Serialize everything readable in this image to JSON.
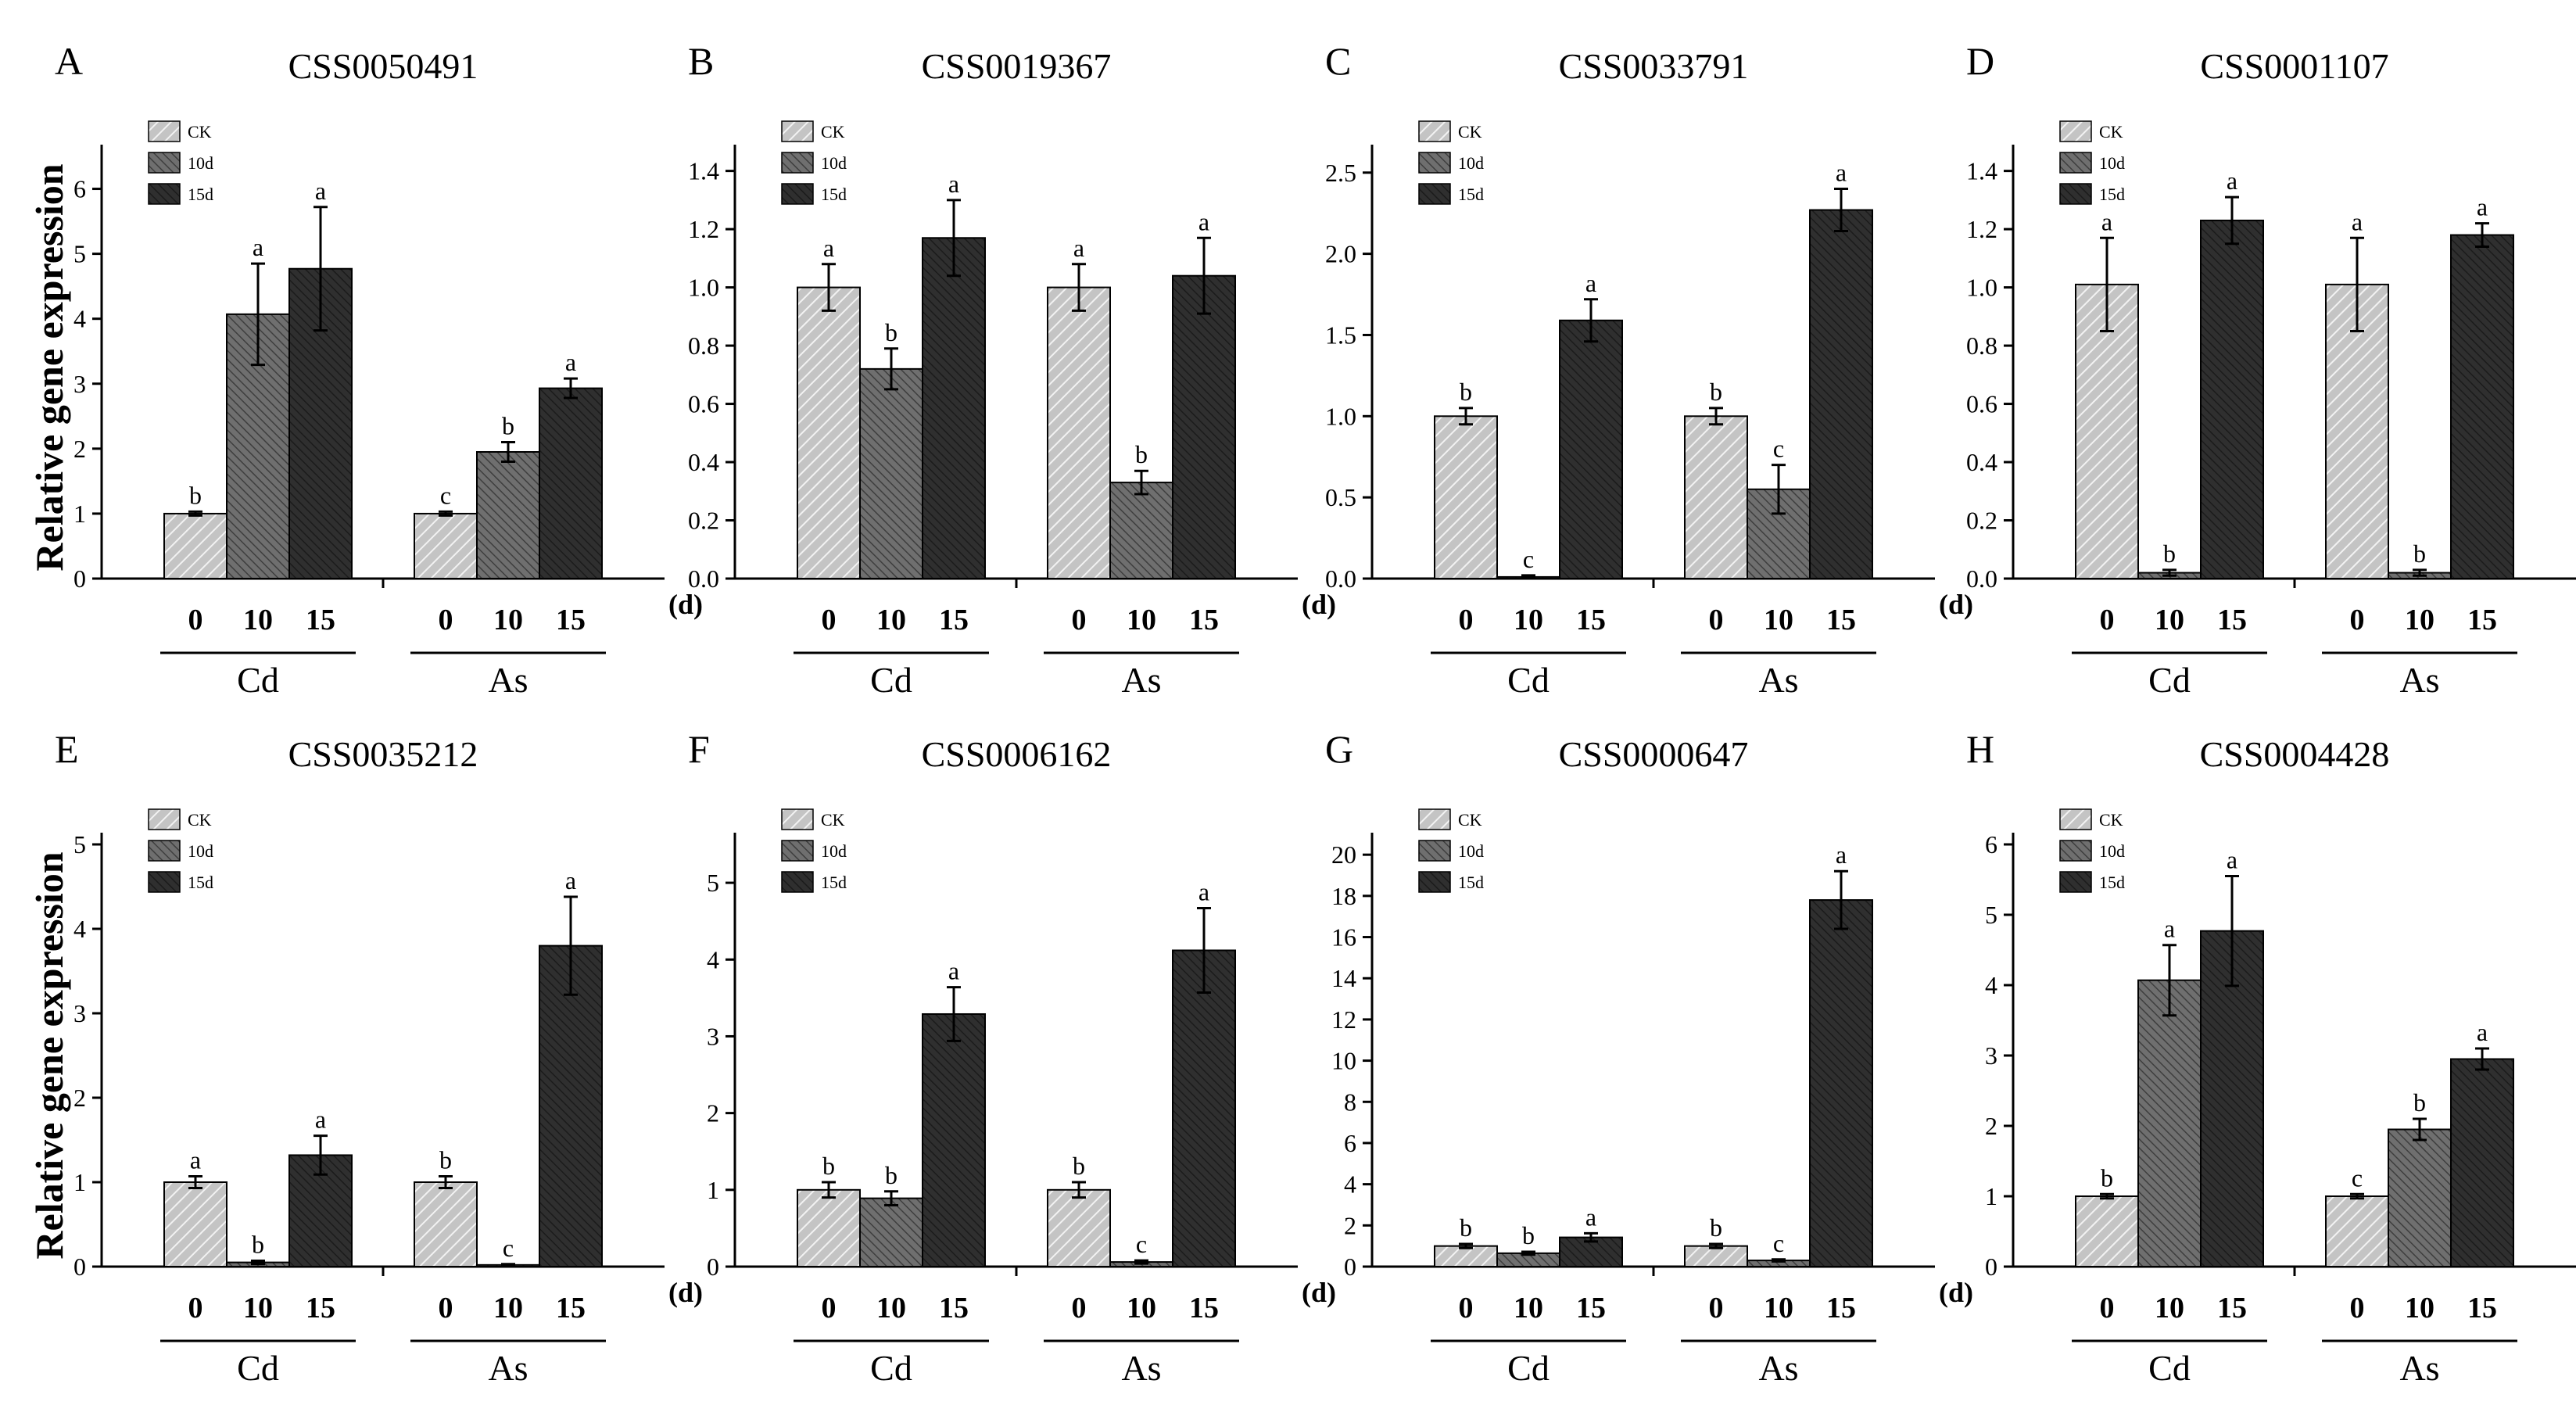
{
  "figure": {
    "ylabel": "Relative gene expression",
    "x_unit": "(d)",
    "group_labels": [
      "Cd",
      "As"
    ],
    "tick_labels": [
      "0",
      "10",
      "15"
    ],
    "legend": [
      "CK",
      "10d",
      "15d"
    ],
    "colors": {
      "CK": "#c4c4c4",
      "10d": "#6f6f6f",
      "15d": "#2f2f2f",
      "error": "#000000"
    }
  },
  "chart_data": [
    {
      "type": "bar",
      "panel": "A",
      "title": "CSS0050491",
      "ylim": [
        0,
        6.5
      ],
      "yticks": [
        0,
        1,
        2,
        3,
        4,
        5,
        6
      ],
      "decimals": 0,
      "categories": [
        "Cd",
        "As"
      ],
      "series": [
        {
          "name": "CK",
          "values": [
            1.0,
            1.0
          ],
          "errors": [
            0.03,
            0.03
          ],
          "letters": [
            "b",
            "c"
          ]
        },
        {
          "name": "10d",
          "values": [
            4.07,
            1.95
          ],
          "errors": [
            0.78,
            0.15
          ],
          "letters": [
            "a",
            "b"
          ]
        },
        {
          "name": "15d",
          "values": [
            4.77,
            2.93
          ],
          "errors": [
            0.95,
            0.15
          ],
          "letters": [
            "a",
            "a"
          ]
        }
      ]
    },
    {
      "type": "bar",
      "panel": "B",
      "title": "CSS0019367",
      "ylim": [
        0,
        1.45
      ],
      "yticks": [
        0,
        0.2,
        0.4,
        0.6,
        0.8,
        1.0,
        1.2,
        1.4
      ],
      "decimals": 1,
      "categories": [
        "Cd",
        "As"
      ],
      "series": [
        {
          "name": "CK",
          "values": [
            1.0,
            1.0
          ],
          "errors": [
            0.08,
            0.08
          ],
          "letters": [
            "a",
            "a"
          ]
        },
        {
          "name": "10d",
          "values": [
            0.72,
            0.33
          ],
          "errors": [
            0.07,
            0.04
          ],
          "letters": [
            "b",
            "b"
          ]
        },
        {
          "name": "15d",
          "values": [
            1.17,
            1.04
          ],
          "errors": [
            0.13,
            0.13
          ],
          "letters": [
            "a",
            "a"
          ]
        }
      ]
    },
    {
      "type": "bar",
      "panel": "C",
      "title": "CSS0033791",
      "ylim": [
        0,
        2.6
      ],
      "yticks": [
        0,
        0.5,
        1.0,
        1.5,
        2.0,
        2.5
      ],
      "decimals": 1,
      "categories": [
        "Cd",
        "As"
      ],
      "series": [
        {
          "name": "CK",
          "values": [
            1.0,
            1.0
          ],
          "errors": [
            0.05,
            0.05
          ],
          "letters": [
            "b",
            "b"
          ]
        },
        {
          "name": "10d",
          "values": [
            0.01,
            0.55
          ],
          "errors": [
            0.01,
            0.15
          ],
          "letters": [
            "c",
            "c"
          ]
        },
        {
          "name": "15d",
          "values": [
            1.59,
            2.27
          ],
          "errors": [
            0.13,
            0.13
          ],
          "letters": [
            "a",
            "a"
          ]
        }
      ]
    },
    {
      "type": "bar",
      "panel": "D",
      "title": "CSS0001107",
      "ylim": [
        0,
        1.45
      ],
      "yticks": [
        0,
        0.2,
        0.4,
        0.6,
        0.8,
        1.0,
        1.2,
        1.4
      ],
      "decimals": 1,
      "categories": [
        "Cd",
        "As"
      ],
      "series": [
        {
          "name": "CK",
          "values": [
            1.01,
            1.01
          ],
          "errors": [
            0.16,
            0.16
          ],
          "letters": [
            "a",
            "a"
          ]
        },
        {
          "name": "10d",
          "values": [
            0.02,
            0.02
          ],
          "errors": [
            0.01,
            0.01
          ],
          "letters": [
            "b",
            "b"
          ]
        },
        {
          "name": "15d",
          "values": [
            1.23,
            1.18
          ],
          "errors": [
            0.08,
            0.04
          ],
          "letters": [
            "a",
            "a"
          ]
        }
      ]
    },
    {
      "type": "bar",
      "panel": "E",
      "title": "CSS0035212",
      "ylim": [
        0,
        5
      ],
      "yticks": [
        0,
        1,
        2,
        3,
        4,
        5
      ],
      "decimals": 0,
      "categories": [
        "Cd",
        "As"
      ],
      "series": [
        {
          "name": "CK",
          "values": [
            1.0,
            1.0
          ],
          "errors": [
            0.07,
            0.07
          ],
          "letters": [
            "a",
            "b"
          ]
        },
        {
          "name": "10d",
          "values": [
            0.05,
            0.02
          ],
          "errors": [
            0.02,
            0.01
          ],
          "letters": [
            "b",
            "c"
          ]
        },
        {
          "name": "15d",
          "values": [
            1.32,
            3.8
          ],
          "errors": [
            0.23,
            0.58
          ],
          "letters": [
            "a",
            "a"
          ]
        }
      ]
    },
    {
      "type": "bar",
      "panel": "F",
      "title": "CSS0006162",
      "ylim": [
        0,
        5.5
      ],
      "yticks": [
        0,
        1,
        2,
        3,
        4,
        5
      ],
      "decimals": 0,
      "categories": [
        "Cd",
        "As"
      ],
      "series": [
        {
          "name": "CK",
          "values": [
            1.0,
            1.0
          ],
          "errors": [
            0.1,
            0.1
          ],
          "letters": [
            "b",
            "b"
          ]
        },
        {
          "name": "10d",
          "values": [
            0.89,
            0.06
          ],
          "errors": [
            0.09,
            0.02
          ],
          "letters": [
            "b",
            "c"
          ]
        },
        {
          "name": "15d",
          "values": [
            3.29,
            4.12
          ],
          "errors": [
            0.35,
            0.55
          ],
          "letters": [
            "a",
            "a"
          ]
        }
      ]
    },
    {
      "type": "bar",
      "panel": "G",
      "title": "CSS0000647",
      "ylim": [
        0,
        20.5
      ],
      "yticks": [
        0,
        2,
        4,
        6,
        8,
        10,
        12,
        14,
        16,
        18,
        20
      ],
      "decimals": 0,
      "categories": [
        "Cd",
        "As"
      ],
      "series": [
        {
          "name": "CK",
          "values": [
            1.0,
            1.0
          ],
          "errors": [
            0.1,
            0.1
          ],
          "letters": [
            "b",
            "b"
          ]
        },
        {
          "name": "10d",
          "values": [
            0.65,
            0.3
          ],
          "errors": [
            0.07,
            0.05
          ],
          "letters": [
            "b",
            "c"
          ]
        },
        {
          "name": "15d",
          "values": [
            1.42,
            17.8
          ],
          "errors": [
            0.2,
            1.4
          ],
          "letters": [
            "a",
            "a"
          ]
        }
      ]
    },
    {
      "type": "bar",
      "panel": "H",
      "title": "CSS0004428",
      "ylim": [
        0,
        6
      ],
      "yticks": [
        0,
        1,
        2,
        3,
        4,
        5,
        6
      ],
      "decimals": 0,
      "categories": [
        "Cd",
        "As"
      ],
      "series": [
        {
          "name": "CK",
          "values": [
            1.0,
            1.0
          ],
          "errors": [
            0.03,
            0.03
          ],
          "letters": [
            "b",
            "c"
          ]
        },
        {
          "name": "10d",
          "values": [
            4.07,
            1.95
          ],
          "errors": [
            0.5,
            0.15
          ],
          "letters": [
            "a",
            "b"
          ]
        },
        {
          "name": "15d",
          "values": [
            4.77,
            2.95
          ],
          "errors": [
            0.78,
            0.15
          ],
          "letters": [
            "a",
            "a"
          ]
        }
      ]
    }
  ]
}
